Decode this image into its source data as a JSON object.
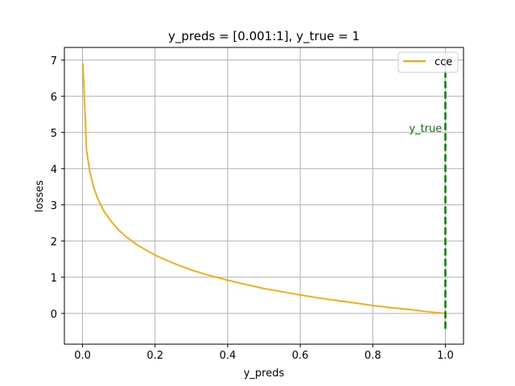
{
  "chart_data": {
    "type": "line",
    "title": "y_preds = [0.001:1], y_true = 1",
    "xlabel": "y_preds",
    "ylabel": "losses",
    "xlim": [
      -0.05,
      1.05
    ],
    "ylim": [
      -0.85,
      7.35
    ],
    "xticks": [
      0.0,
      0.2,
      0.4,
      0.6,
      0.8,
      1.0
    ],
    "xtick_labels": [
      "0.0",
      "0.2",
      "0.4",
      "0.6",
      "0.8",
      "1.0"
    ],
    "yticks": [
      0,
      1,
      2,
      3,
      4,
      5,
      6,
      7
    ],
    "ytick_labels": [
      "0",
      "1",
      "2",
      "3",
      "4",
      "5",
      "6",
      "7"
    ],
    "grid": true,
    "legend_position": "top-right",
    "series": [
      {
        "name": "cce",
        "color": "#ffa500",
        "x": [
          0.001,
          0.011,
          0.02,
          0.03,
          0.04,
          0.05,
          0.06,
          0.08,
          0.1,
          0.12,
          0.15,
          0.2,
          0.25,
          0.3,
          0.35,
          0.4,
          0.45,
          0.5,
          0.55,
          0.6,
          0.65,
          0.7,
          0.75,
          0.8,
          0.85,
          0.9,
          0.95,
          1.0
        ],
        "y": [
          6.91,
          4.51,
          3.91,
          3.51,
          3.22,
          3.0,
          2.81,
          2.53,
          2.3,
          2.12,
          1.9,
          1.61,
          1.39,
          1.2,
          1.05,
          0.92,
          0.8,
          0.69,
          0.6,
          0.51,
          0.43,
          0.36,
          0.29,
          0.22,
          0.16,
          0.11,
          0.05,
          0.0
        ]
      }
    ],
    "annotations": [
      {
        "type": "vline",
        "x": 1.0,
        "y_range": [
          -0.5,
          7.0
        ],
        "color": "#008000",
        "style": "dashed"
      },
      {
        "type": "text",
        "text": "y_true",
        "x": 0.9,
        "y": 5.0,
        "color": "#008000"
      }
    ]
  }
}
